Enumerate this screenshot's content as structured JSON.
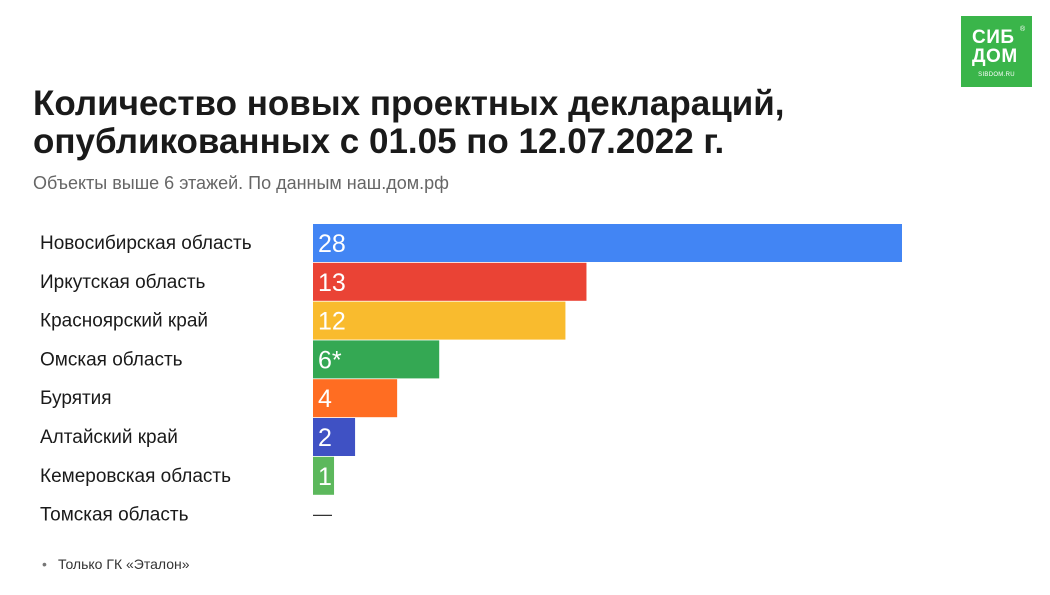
{
  "logo": {
    "line1": "СИБ",
    "line2": "ДОМ",
    "reg": "®",
    "url": "SIBDOM.RU",
    "color": "#3ab54a"
  },
  "header": {
    "title_line1": "Количество новых проектных деклараций,",
    "title_line2": "опубликованных с 01.05 по 12.07.2022 г.",
    "subtitle": "Объекты выше 6 этажей. По данным наш.дом.рф"
  },
  "chart_data": {
    "type": "bar",
    "orientation": "horizontal",
    "title": "Количество новых проектных деклараций, опубликованных с 01.05 по 12.07.2022 г.",
    "subtitle": "Объекты выше 6 этажей. По данным наш.дом.рф",
    "xlabel": "",
    "ylabel": "",
    "grid": false,
    "legend": "none",
    "categories": [
      "Новосибирская область",
      "Иркутская область",
      "Красноярский край",
      "Омская область",
      "Бурятия",
      "Алтайский край",
      "Кемеровская область",
      "Томская область"
    ],
    "values": [
      28,
      13,
      12,
      6,
      4,
      2,
      1,
      0
    ],
    "value_labels": [
      "28",
      "13",
      "12",
      "6*",
      "4",
      "2",
      "1",
      "—"
    ],
    "colors": [
      "#4285f4",
      "#ea4335",
      "#f9bb2e",
      "#34a853",
      "#ff6d22",
      "#3f51c4",
      "#5cb85c",
      "#333333"
    ],
    "xlim": [
      0,
      28
    ]
  },
  "footnote": {
    "bullet": "•",
    "text": "Только ГК «Эталон»"
  }
}
